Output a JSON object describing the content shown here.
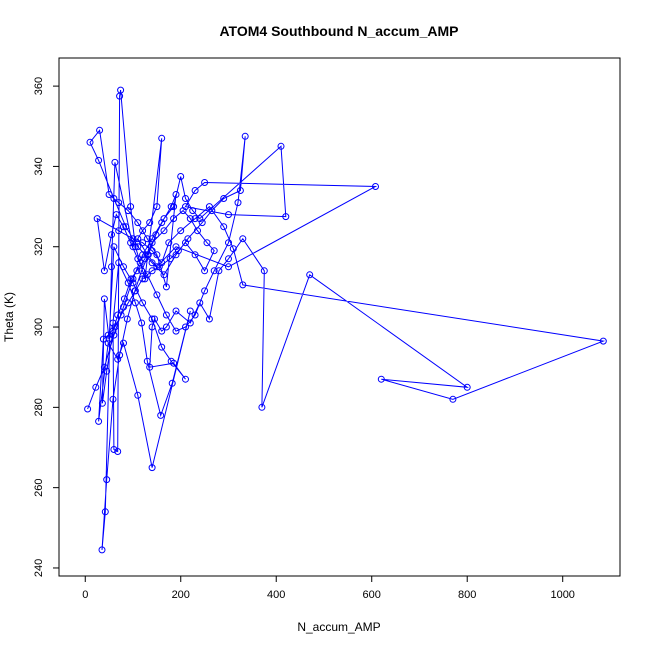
{
  "chart_data": {
    "type": "line",
    "title": "ATOM4 Southbound N_accum_AMP",
    "xlabel": "N_accum_AMP",
    "ylabel": "Theta (K)",
    "xlim": [
      -55,
      1120
    ],
    "ylim": [
      238,
      367
    ],
    "x_ticks": [
      0,
      200,
      400,
      600,
      800,
      1000
    ],
    "y_ticks": [
      240,
      260,
      280,
      300,
      320,
      340,
      360
    ],
    "grid": false,
    "series_color": "#0000ff",
    "markers": "open-circle",
    "series": [
      {
        "points": [
          [
            5,
            279.6
          ],
          [
            22,
            285
          ],
          [
            40,
            290
          ],
          [
            60,
            298
          ],
          [
            80,
            305
          ],
          [
            100,
            312
          ],
          [
            120,
            318
          ],
          [
            140,
            322
          ],
          [
            160,
            326
          ],
          [
            180,
            330
          ],
          [
            190,
            333
          ],
          [
            170,
            310
          ],
          [
            150,
            318
          ],
          [
            130,
            322
          ],
          [
            110,
            326
          ],
          [
            90,
            329
          ],
          [
            70,
            331
          ],
          [
            50,
            333
          ],
          [
            30,
            349
          ],
          [
            10,
            346
          ],
          [
            28,
            341.5
          ],
          [
            60,
            332
          ],
          [
            85,
            325
          ],
          [
            110,
            320
          ],
          [
            140,
            316
          ],
          [
            165,
            313
          ],
          [
            190,
            318
          ],
          [
            215,
            322
          ],
          [
            245,
            326
          ],
          [
            265,
            329
          ],
          [
            290,
            332
          ],
          [
            325,
            334
          ],
          [
            335,
            347.5
          ],
          [
            320,
            331
          ],
          [
            300,
            321
          ],
          [
            270,
            314
          ],
          [
            250,
            309
          ],
          [
            230,
            303
          ],
          [
            210,
            300
          ],
          [
            190,
            299
          ],
          [
            170,
            303
          ],
          [
            150,
            308
          ],
          [
            130,
            313
          ],
          [
            110,
            317
          ],
          [
            95,
            321
          ],
          [
            80,
            325
          ],
          [
            65,
            328
          ],
          [
            55,
            323
          ],
          [
            40,
            314
          ],
          [
            25,
            327
          ],
          [
            70,
            324
          ],
          [
            100,
            322
          ],
          [
            120,
            321
          ],
          [
            140,
            319
          ],
          [
            160,
            316
          ],
          [
            175,
            321
          ],
          [
            200,
            324
          ],
          [
            230,
            327
          ],
          [
            260,
            330
          ],
          [
            290,
            325
          ],
          [
            310,
            319.5
          ],
          [
            330,
            310.5
          ],
          [
            1085,
            296.5
          ],
          [
            770,
            282
          ],
          [
            620,
            287
          ],
          [
            800,
            285
          ],
          [
            470,
            313
          ],
          [
            370,
            280
          ],
          [
            375,
            314
          ],
          [
            330,
            322
          ],
          [
            300,
            317
          ],
          [
            280,
            314
          ],
          [
            260,
            302
          ],
          [
            240,
            306
          ],
          [
            220,
            301
          ],
          [
            190,
            304
          ],
          [
            170,
            300
          ],
          [
            160,
            299
          ],
          [
            145,
            302
          ],
          [
            140,
            300
          ],
          [
            135,
            290
          ],
          [
            185,
            291
          ],
          [
            210,
            287
          ],
          [
            180,
            291.5
          ],
          [
            160,
            295
          ],
          [
            140,
            302
          ],
          [
            120,
            306
          ],
          [
            100,
            311
          ],
          [
            80,
            315
          ],
          [
            60,
            320
          ],
          [
            50,
            297
          ],
          [
            40,
            307
          ],
          [
            36,
            281
          ],
          [
            45,
            289
          ],
          [
            58,
            299
          ],
          [
            68,
            303
          ],
          [
            82,
            307
          ],
          [
            96,
            312
          ],
          [
            108,
            314
          ],
          [
            125,
            317
          ],
          [
            140,
            321
          ],
          [
            165,
            324
          ],
          [
            185,
            327
          ],
          [
            205,
            329
          ],
          [
            220,
            327
          ],
          [
            235,
            324
          ],
          [
            255,
            321
          ],
          [
            270,
            319
          ],
          [
            250,
            314
          ],
          [
            230,
            318
          ],
          [
            210,
            321
          ],
          [
            195,
            319
          ],
          [
            178,
            317
          ],
          [
            155,
            315
          ],
          [
            140,
            314
          ],
          [
            120,
            312
          ],
          [
            105,
            309
          ],
          [
            90,
            306
          ],
          [
            75,
            303
          ],
          [
            62,
            300
          ],
          [
            48,
            298
          ],
          [
            38,
            297
          ],
          [
            28,
            276.5
          ],
          [
            48,
            296
          ],
          [
            68,
            292
          ],
          [
            80,
            296
          ],
          [
            110,
            283
          ],
          [
            140,
            265
          ],
          [
            220,
            304
          ],
          [
            182,
            286
          ],
          [
            158,
            278
          ],
          [
            130,
            291.5
          ],
          [
            118,
            301
          ],
          [
            105,
            306
          ],
          [
            90,
            311
          ],
          [
            70,
            316
          ],
          [
            58,
            301
          ],
          [
            60,
            269.5
          ],
          [
            68,
            269
          ],
          [
            72,
            357.5
          ],
          [
            74,
            359
          ],
          [
            95,
            330
          ],
          [
            105,
            320
          ],
          [
            115,
            316
          ],
          [
            125,
            312
          ],
          [
            160,
            347
          ],
          [
            150,
            330
          ],
          [
            135,
            326
          ],
          [
            120,
            324
          ],
          [
            100,
            320
          ],
          [
            62,
            341
          ],
          [
            55,
            315
          ],
          [
            42,
            254
          ],
          [
            35,
            244.5
          ],
          [
            45,
            262
          ],
          [
            58,
            282
          ],
          [
            72,
            293
          ],
          [
            88,
            302
          ],
          [
            104,
            309
          ],
          [
            118,
            314
          ],
          [
            132,
            318
          ],
          [
            148,
            323
          ],
          [
            165,
            327
          ],
          [
            185,
            330
          ],
          [
            200,
            337.5
          ],
          [
            210,
            332
          ],
          [
            225,
            329
          ],
          [
            240,
            327
          ],
          [
            410,
            345
          ],
          [
            420,
            327.5
          ],
          [
            300,
            328
          ],
          [
            210,
            330
          ],
          [
            230,
            334
          ],
          [
            250,
            336
          ],
          [
            608,
            335
          ],
          [
            300,
            315
          ],
          [
            190,
            320
          ],
          [
            150,
            315
          ],
          [
            130,
            318
          ],
          [
            110,
            322
          ]
        ]
      }
    ]
  }
}
